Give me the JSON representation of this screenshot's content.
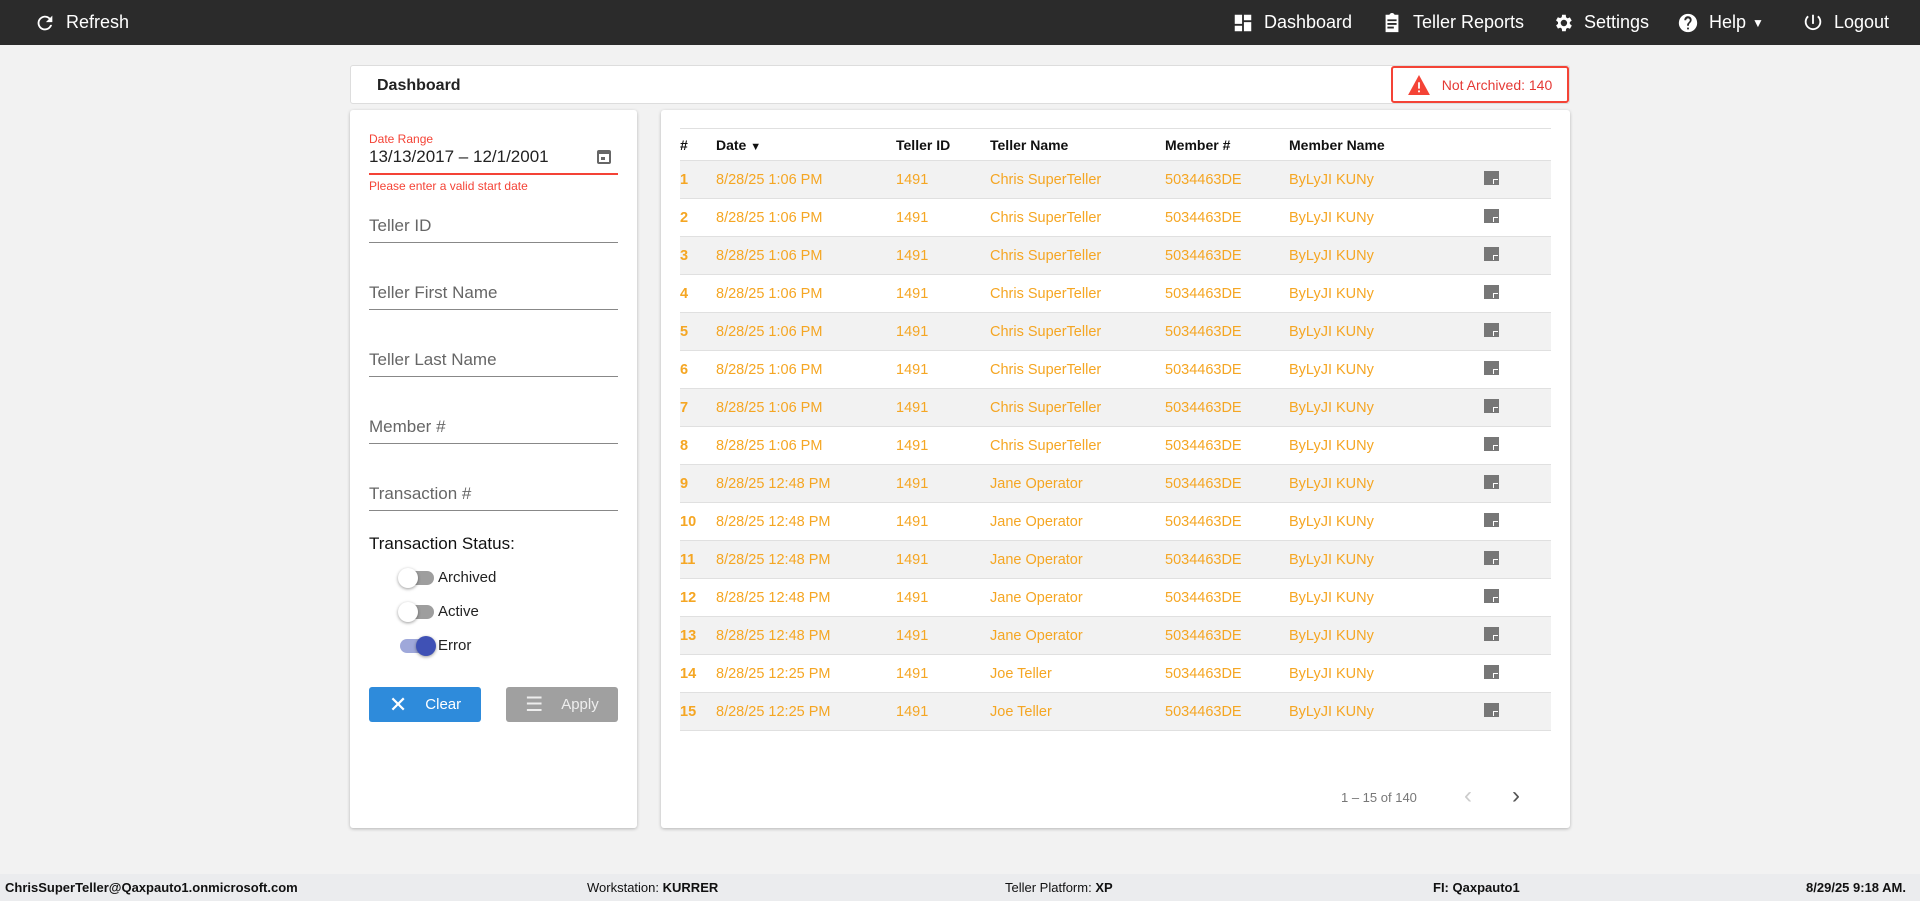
{
  "nav": {
    "refresh": "Refresh",
    "dashboard": "Dashboard",
    "teller_reports": "Teller Reports",
    "settings": "Settings",
    "help": "Help",
    "logout": "Logout"
  },
  "header": {
    "title": "Dashboard",
    "badge": "Not Archived: 140",
    "badge_color": "#f44336"
  },
  "filters": {
    "date_label": "Date Range",
    "date_value": "13/13/2017 – 12/1/2001",
    "date_error": "Please enter a valid start date",
    "teller_id": "Teller ID",
    "first_name": "Teller First Name",
    "last_name": "Teller Last Name",
    "member": "Member #",
    "transaction": "Transaction #",
    "status_label": "Transaction Status:",
    "statuses": [
      {
        "label": "Archived",
        "on": false
      },
      {
        "label": "Active",
        "on": false
      },
      {
        "label": "Error",
        "on": true
      }
    ],
    "clear": "Clear",
    "apply": "Apply"
  },
  "table": {
    "headers": [
      "#",
      "Date",
      "Teller ID",
      "Teller Name",
      "Member #",
      "Member Name"
    ],
    "rows": [
      [
        "1",
        "8/28/25 1:06 PM",
        "1491",
        "Chris SuperTeller",
        "5034463DE",
        "ByLyJI KUNy"
      ],
      [
        "2",
        "8/28/25 1:06 PM",
        "1491",
        "Chris SuperTeller",
        "5034463DE",
        "ByLyJI KUNy"
      ],
      [
        "3",
        "8/28/25 1:06 PM",
        "1491",
        "Chris SuperTeller",
        "5034463DE",
        "ByLyJI KUNy"
      ],
      [
        "4",
        "8/28/25 1:06 PM",
        "1491",
        "Chris SuperTeller",
        "5034463DE",
        "ByLyJI KUNy"
      ],
      [
        "5",
        "8/28/25 1:06 PM",
        "1491",
        "Chris SuperTeller",
        "5034463DE",
        "ByLyJI KUNy"
      ],
      [
        "6",
        "8/28/25 1:06 PM",
        "1491",
        "Chris SuperTeller",
        "5034463DE",
        "ByLyJI KUNy"
      ],
      [
        "7",
        "8/28/25 1:06 PM",
        "1491",
        "Chris SuperTeller",
        "5034463DE",
        "ByLyJI KUNy"
      ],
      [
        "8",
        "8/28/25 1:06 PM",
        "1491",
        "Chris SuperTeller",
        "5034463DE",
        "ByLyJI KUNy"
      ],
      [
        "9",
        "8/28/25 12:48 PM",
        "1491",
        "Jane Operator",
        "5034463DE",
        "ByLyJI KUNy"
      ],
      [
        "10",
        "8/28/25 12:48 PM",
        "1491",
        "Jane Operator",
        "5034463DE",
        "ByLyJI KUNy"
      ],
      [
        "11",
        "8/28/25 12:48 PM",
        "1491",
        "Jane Operator",
        "5034463DE",
        "ByLyJI KUNy"
      ],
      [
        "12",
        "8/28/25 12:48 PM",
        "1491",
        "Jane Operator",
        "5034463DE",
        "ByLyJI KUNy"
      ],
      [
        "13",
        "8/28/25 12:48 PM",
        "1491",
        "Jane Operator",
        "5034463DE",
        "ByLyJI KUNy"
      ],
      [
        "14",
        "8/28/25 12:25 PM",
        "1491",
        "Joe Teller",
        "5034463DE",
        "ByLyJI KUNy"
      ],
      [
        "15",
        "8/28/25 12:25 PM",
        "1491",
        "Joe Teller",
        "5034463DE",
        "ByLyJI KUNy"
      ]
    ],
    "pagination": "1 – 15 of 140"
  },
  "footer": {
    "user": "ChrisSuperTeller@Qaxpauto1.onmicrosoft.com",
    "ws_label": "Workstation:",
    "ws": "KURRER",
    "tp_label": "Teller Platform:",
    "tp": "XP",
    "fi_label": "FI:",
    "fi": "Qaxpauto1",
    "datetime": "8/29/25 9:18 AM."
  }
}
